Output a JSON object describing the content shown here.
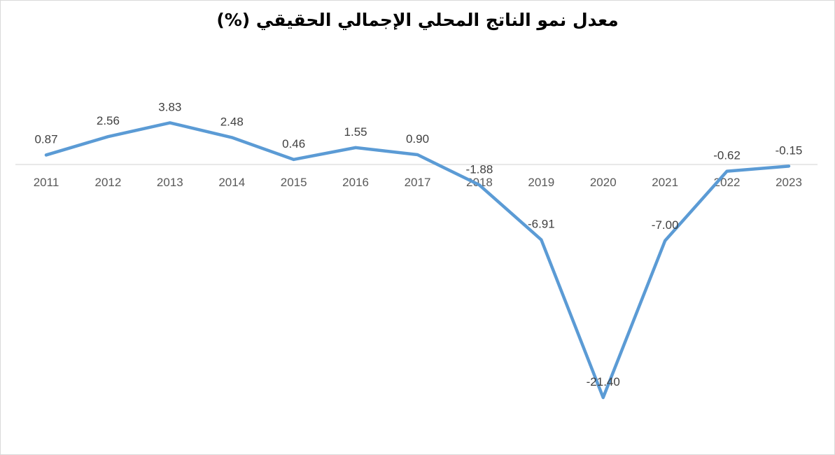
{
  "chart_data": {
    "type": "line",
    "title": "معدل نمو الناتج المحلي الإجمالي الحقيقي (%)",
    "xlabel": "",
    "ylabel": "",
    "categories": [
      "2011",
      "2012",
      "2013",
      "2014",
      "2015",
      "2016",
      "2017",
      "2018",
      "2019",
      "2020",
      "2021",
      "2022",
      "2023"
    ],
    "series": [
      {
        "values": [
          0.87,
          2.56,
          3.83,
          2.48,
          0.46,
          1.55,
          0.9,
          -1.88,
          -6.91,
          -21.4,
          -7.0,
          -0.62,
          -0.15
        ],
        "labels": [
          "0.87",
          "2.56",
          "3.83",
          "2.48",
          "0.46",
          "1.55",
          "0.90",
          "-1.88",
          "-6.91",
          "-21.40",
          "-7.00",
          "-0.62",
          "-0.15"
        ],
        "color": "#5b9bd5"
      }
    ],
    "ylim": [
      -23,
      8
    ],
    "grid": false,
    "legend": "none",
    "axis_color": "#d9d9d9"
  }
}
